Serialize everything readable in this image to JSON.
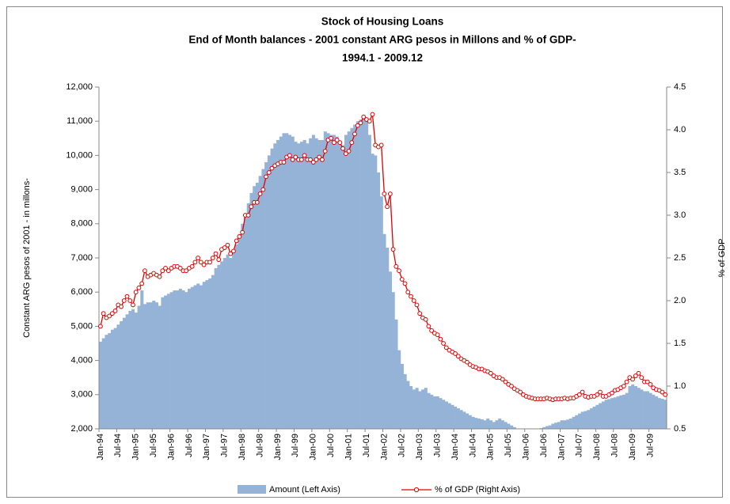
{
  "chart_data": {
    "type": "bar_line",
    "title": "Stock of Housing Loans",
    "subtitle": "End of Month balances - 2001 constant ARG pesos in Millons and % of GDP-",
    "period": "1994.1 - 2009.12",
    "ylabel": "Constant ARG pesos of 2001 - in millons-",
    "y2label": "% of GDP",
    "categories": [
      "Jan-94",
      null,
      null,
      null,
      null,
      null,
      "Jul-94",
      null,
      null,
      null,
      null,
      null,
      "Jan-95",
      null,
      null,
      null,
      null,
      null,
      "Jul-95",
      null,
      null,
      null,
      null,
      null,
      "Jan-96",
      null,
      null,
      null,
      null,
      null,
      "Jul-96",
      null,
      null,
      null,
      null,
      null,
      "Jan-97",
      null,
      null,
      null,
      null,
      null,
      "Jul-97",
      null,
      null,
      null,
      null,
      null,
      "Jan-98",
      null,
      null,
      null,
      null,
      null,
      "Jul-98",
      null,
      null,
      null,
      null,
      null,
      "Jan-99",
      null,
      null,
      null,
      null,
      null,
      "Jul-99",
      null,
      null,
      null,
      null,
      null,
      "Jan-00",
      null,
      null,
      null,
      null,
      null,
      "Jul-00",
      null,
      null,
      null,
      null,
      null,
      "Jan-01",
      null,
      null,
      null,
      null,
      null,
      "Jul-01",
      null,
      null,
      null,
      null,
      null,
      "Jan-02",
      null,
      null,
      null,
      null,
      null,
      "Jul-02",
      null,
      null,
      null,
      null,
      null,
      "Jan-03",
      null,
      null,
      null,
      null,
      null,
      "Jul-03",
      null,
      null,
      null,
      null,
      null,
      "Jan-04",
      null,
      null,
      null,
      null,
      null,
      "Jul-04",
      null,
      null,
      null,
      null,
      null,
      "Jan-05",
      null,
      null,
      null,
      null,
      null,
      "Jul-05",
      null,
      null,
      null,
      null,
      null,
      "Jan-06",
      null,
      null,
      null,
      null,
      null,
      "Jul-06",
      null,
      null,
      null,
      null,
      null,
      "Jan-07",
      null,
      null,
      null,
      null,
      null,
      "Jul-07",
      null,
      null,
      null,
      null,
      null,
      "Jan-08",
      null,
      null,
      null,
      null,
      null,
      "Jul-08",
      null,
      null,
      null,
      null,
      null,
      "Jan-09",
      null,
      null,
      null,
      null,
      null,
      "Jul-09",
      null,
      null,
      null,
      null,
      null
    ],
    "series": [
      {
        "name": "Amount (Left Axis)",
        "type": "bar",
        "color": "#95b3d7",
        "values": [
          4550,
          4650,
          4750,
          4800,
          4900,
          4950,
          5050,
          5150,
          5250,
          5350,
          5450,
          5500,
          5400,
          5600,
          6050,
          5650,
          5700,
          5700,
          5750,
          5700,
          5600,
          5850,
          5900,
          5950,
          6000,
          6050,
          6050,
          6100,
          6050,
          6000,
          6100,
          6150,
          6200,
          6250,
          6200,
          6300,
          6350,
          6400,
          6500,
          6700,
          6800,
          6900,
          7000,
          7100,
          7000,
          7150,
          7400,
          7700,
          8000,
          8300,
          8600,
          8900,
          9100,
          9200,
          9400,
          9600,
          9800,
          10000,
          10200,
          10350,
          10450,
          10550,
          10650,
          10650,
          10600,
          10550,
          10400,
          10350,
          10400,
          10450,
          10350,
          10500,
          10600,
          10500,
          10450,
          10450,
          10700,
          10650,
          10600,
          10600,
          10550,
          10400,
          10300,
          10600,
          10700,
          10800,
          10900,
          11000,
          11050,
          11100,
          11000,
          10600,
          10050,
          10000,
          9500,
          8800,
          7700,
          7300,
          6600,
          6000,
          5200,
          4300,
          3900,
          3600,
          3400,
          3250,
          3150,
          3200,
          3100,
          3150,
          3200,
          3050,
          3000,
          2950,
          2950,
          2900,
          2850,
          2800,
          2750,
          2700,
          2650,
          2600,
          2550,
          2500,
          2450,
          2400,
          2350,
          2320,
          2300,
          2280,
          2250,
          2300,
          2250,
          2200,
          2250,
          2300,
          2250,
          2200,
          2150,
          2100,
          2050,
          2000,
          1980,
          1970,
          1990,
          1980,
          1980,
          1990,
          2000,
          2020,
          2050,
          2080,
          2100,
          2150,
          2180,
          2200,
          2250,
          2250,
          2270,
          2300,
          2350,
          2400,
          2450,
          2500,
          2520,
          2550,
          2600,
          2650,
          2700,
          2750,
          2800,
          2850,
          2870,
          2900,
          2920,
          2950,
          2980,
          3000,
          3050,
          3250,
          3300,
          3250,
          3200,
          3150,
          3100,
          3100,
          3050,
          3000,
          2950,
          2900,
          2880,
          2850
        ]
      },
      {
        "name": "% of GDP (Right Axis)",
        "type": "line",
        "axis": "y2",
        "color": "#e00000",
        "values": [
          1.7,
          1.85,
          1.8,
          1.82,
          1.85,
          1.88,
          1.95,
          1.93,
          2.0,
          2.05,
          2.0,
          1.95,
          2.1,
          2.15,
          2.2,
          2.35,
          2.28,
          2.3,
          2.32,
          2.3,
          2.28,
          2.35,
          2.38,
          2.35,
          2.38,
          2.4,
          2.4,
          2.38,
          2.35,
          2.35,
          2.38,
          2.4,
          2.45,
          2.5,
          2.45,
          2.42,
          2.45,
          2.45,
          2.5,
          2.55,
          2.48,
          2.6,
          2.62,
          2.65,
          2.55,
          2.58,
          2.7,
          2.75,
          2.8,
          3.0,
          3.0,
          3.1,
          3.15,
          3.15,
          3.25,
          3.3,
          3.45,
          3.5,
          3.55,
          3.58,
          3.6,
          3.62,
          3.62,
          3.68,
          3.7,
          3.65,
          3.68,
          3.65,
          3.65,
          3.7,
          3.65,
          3.65,
          3.62,
          3.65,
          3.68,
          3.65,
          3.75,
          3.88,
          3.9,
          3.85,
          3.88,
          3.85,
          3.78,
          3.72,
          3.75,
          3.85,
          3.95,
          4.05,
          4.08,
          4.15,
          4.12,
          4.1,
          4.18,
          3.82,
          3.8,
          3.82,
          3.25,
          3.1,
          3.25,
          2.6,
          2.4,
          2.35,
          2.25,
          2.2,
          2.1,
          2.05,
          2.0,
          1.95,
          1.85,
          1.8,
          1.78,
          1.7,
          1.65,
          1.62,
          1.6,
          1.55,
          1.5,
          1.45,
          1.42,
          1.4,
          1.38,
          1.35,
          1.32,
          1.3,
          1.28,
          1.25,
          1.23,
          1.22,
          1.2,
          1.2,
          1.18,
          1.17,
          1.15,
          1.12,
          1.1,
          1.1,
          1.08,
          1.05,
          1.02,
          1.0,
          0.97,
          0.95,
          0.93,
          0.9,
          0.88,
          0.87,
          0.86,
          0.85,
          0.85,
          0.85,
          0.85,
          0.86,
          0.85,
          0.84,
          0.85,
          0.85,
          0.85,
          0.86,
          0.85,
          0.86,
          0.86,
          0.88,
          0.9,
          0.93,
          0.88,
          0.87,
          0.88,
          0.88,
          0.9,
          0.93,
          0.88,
          0.88,
          0.9,
          0.92,
          0.95,
          0.96,
          0.98,
          1.0,
          1.05,
          1.1,
          1.08,
          1.12,
          1.15,
          1.1,
          1.05,
          1.05,
          1.02,
          0.98,
          0.96,
          0.95,
          0.93,
          0.9
        ]
      }
    ],
    "ylim": [
      2000,
      12000
    ],
    "yticks": [
      {
        "value": 2000,
        "label": "2,000"
      },
      {
        "value": 3000,
        "label": "3,000"
      },
      {
        "value": 4000,
        "label": "4,000"
      },
      {
        "value": 5000,
        "label": "5,000"
      },
      {
        "value": 6000,
        "label": "6,000"
      },
      {
        "value": 7000,
        "label": "7,000"
      },
      {
        "value": 8000,
        "label": "8,000"
      },
      {
        "value": 9000,
        "label": "9,000"
      },
      {
        "value": 10000,
        "label": "10,000"
      },
      {
        "value": 11000,
        "label": "11,000"
      },
      {
        "value": 12000,
        "label": "12,000"
      }
    ],
    "y2lim": [
      0.5,
      4.5
    ],
    "y2ticks": [
      0.5,
      {
        "value": 1,
        "label": "1.0"
      },
      1.5,
      {
        "value": 2,
        "label": "2.0"
      },
      2.5,
      {
        "value": 3,
        "label": "3.0"
      },
      3.5,
      {
        "value": 4,
        "label": "4.0"
      },
      4.5
    ],
    "legend": "bottom"
  }
}
